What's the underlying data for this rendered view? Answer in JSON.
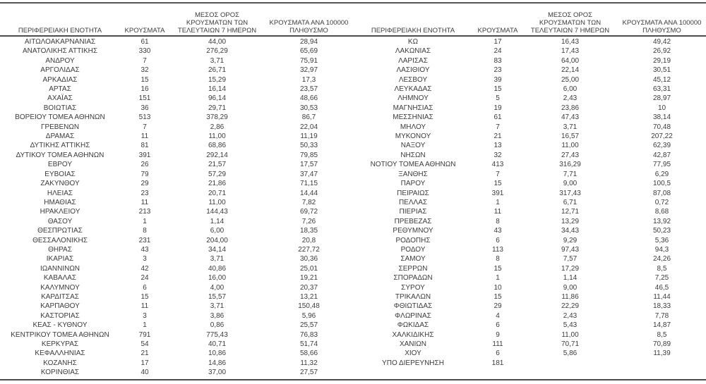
{
  "colors": {
    "text": "#3b3b3b",
    "rule": "#4d4d4d",
    "background": "#ffffff"
  },
  "header": {
    "region": "ΠΕΡΙΦΕΡΕΙΑΚΗ ΕΝΟΤΗΤΑ",
    "cases": "ΚΡΟΥΣΜΑΤΑ",
    "avg7": "ΜΕΣΟΣ ΟΡΟΣ\nΚΡΟΥΣΜΑΤΩΝ ΤΩΝ\nΤΕΛΕΥΤΑΙΩΝ 7 ΗΜΕΡΩΝ",
    "per100k": "ΚΡΟΥΣΜΑΤΑ ΑΝΑ 100000\nΠΛΗΘΥΣΜΟ"
  },
  "tables": [
    {
      "rows": [
        [
          "ΑΙΤΩΛΟΑΚΑΡΝΑΝΙΑΣ",
          "61",
          "44,00",
          "28,94"
        ],
        [
          "ΑΝΑΤΟΛΙΚΗΣ ΑΤΤΙΚΗΣ",
          "330",
          "276,29",
          "65,69"
        ],
        [
          "ΑΝΔΡΟΥ",
          "7",
          "3,71",
          "75,91"
        ],
        [
          "ΑΡΓΟΛΙΔΑΣ",
          "32",
          "26,71",
          "32,97"
        ],
        [
          "ΑΡΚΑΔΙΑΣ",
          "15",
          "15,29",
          "17,3"
        ],
        [
          "ΑΡΤΑΣ",
          "16",
          "16,14",
          "23,57"
        ],
        [
          "ΑΧΑΪΑΣ",
          "151",
          "96,14",
          "48,66"
        ],
        [
          "ΒΟΙΩΤΙΑΣ",
          "36",
          "29,71",
          "30,53"
        ],
        [
          "ΒΟΡΕΙΟΥ ΤΟΜΕΑ ΑΘΗΝΩΝ",
          "513",
          "378,29",
          "86,7"
        ],
        [
          "ΓΡΕΒΕΝΩΝ",
          "7",
          "2,86",
          "22,04"
        ],
        [
          "ΔΡΑΜΑΣ",
          "11",
          "11,00",
          "11,19"
        ],
        [
          "ΔΥΤΙΚΗΣ ΑΤΤΙΚΗΣ",
          "81",
          "68,86",
          "50,33"
        ],
        [
          "ΔΥΤΙΚΟΥ ΤΟΜΕΑ ΑΘΗΝΩΝ",
          "391",
          "292,14",
          "79,85"
        ],
        [
          "ΕΒΡΟΥ",
          "26",
          "21,57",
          "17,57"
        ],
        [
          "ΕΥΒΟΙΑΣ",
          "79",
          "57,29",
          "37,47"
        ],
        [
          "ΖΑΚΥΝΘΟΥ",
          "29",
          "21,86",
          "71,15"
        ],
        [
          "ΗΛΕΙΑΣ",
          "23",
          "20,71",
          "14,44"
        ],
        [
          "ΗΜΑΘΙΑΣ",
          "11",
          "11,00",
          "7,82"
        ],
        [
          "ΗΡΑΚΛΕΙΟΥ",
          "213",
          "144,43",
          "69,72"
        ],
        [
          "ΘΑΣΟΥ",
          "1",
          "1,14",
          "7,26"
        ],
        [
          "ΘΕΣΠΡΩΤΙΑΣ",
          "8",
          "6,00",
          "18,35"
        ],
        [
          "ΘΕΣΣΑΛΟΝΙΚΗΣ",
          "231",
          "204,00",
          "20,8"
        ],
        [
          "ΘΗΡΑΣ",
          "43",
          "34,14",
          "227,72"
        ],
        [
          "ΙΚΑΡΙΑΣ",
          "3",
          "3,71",
          "30,36"
        ],
        [
          "ΙΩΑΝΝΙΝΩΝ",
          "42",
          "40,86",
          "25,01"
        ],
        [
          "ΚΑΒΑΛΑΣ",
          "24",
          "16,00",
          "19,21"
        ],
        [
          "ΚΑΛΥΜΝΟΥ",
          "6",
          "4,00",
          "20,37"
        ],
        [
          "ΚΑΡΔΙΤΣΑΣ",
          "15",
          "15,57",
          "13,21"
        ],
        [
          "ΚΑΡΠΑΘΟΥ",
          "11",
          "3,71",
          "150,48"
        ],
        [
          "ΚΑΣΤΟΡΙΑΣ",
          "3",
          "3,86",
          "5,96"
        ],
        [
          "ΚΕΑΣ - ΚΥΘΝΟΥ",
          "1",
          "0,86",
          "25,57"
        ],
        [
          "ΚΕΝΤΡΙΚΟΥ ΤΟΜΕΑ ΑΘΗΝΩΝ",
          "791",
          "775,43",
          "76,83"
        ],
        [
          "ΚΕΡΚΥΡΑΣ",
          "54",
          "40,71",
          "51,74"
        ],
        [
          "ΚΕΦΑΛΛΗΝΙΑΣ",
          "21",
          "10,86",
          "58,66"
        ],
        [
          "ΚΟΖΑΝΗΣ",
          "17",
          "14,86",
          "11,32"
        ],
        [
          "ΚΟΡΙΝΘΙΑΣ",
          "40",
          "37,00",
          "27,57"
        ]
      ]
    },
    {
      "rows": [
        [
          "ΚΩ",
          "17",
          "16,43",
          "49,42"
        ],
        [
          "ΛΑΚΩΝΙΑΣ",
          "24",
          "17,43",
          "26,92"
        ],
        [
          "ΛΑΡΙΣΑΣ",
          "83",
          "64,00",
          "29,19"
        ],
        [
          "ΛΑΣΙΘΙΟΥ",
          "23",
          "22,14",
          "30,51"
        ],
        [
          "ΛΕΣΒΟΥ",
          "39",
          "25,00",
          "45,12"
        ],
        [
          "ΛΕΥΚΑΔΑΣ",
          "15",
          "6,00",
          "63,31"
        ],
        [
          "ΛΗΜΝΟΥ",
          "5",
          "2,43",
          "28,97"
        ],
        [
          "ΜΑΓΝΗΣΙΑΣ",
          "19",
          "23,86",
          "10"
        ],
        [
          "ΜΕΣΣΗΝΙΑΣ",
          "61",
          "47,43",
          "38,14"
        ],
        [
          "ΜΗΛΟΥ",
          "7",
          "3,71",
          "70,48"
        ],
        [
          "ΜΥΚΟΝΟΥ",
          "21",
          "16,57",
          "207,22"
        ],
        [
          "ΝΑΞΟΥ",
          "13",
          "11,00",
          "62,39"
        ],
        [
          "ΝΗΣΩΝ",
          "32",
          "27,43",
          "42,87"
        ],
        [
          "ΝΟΤΙΟΥ ΤΟΜΕΑ ΑΘΗΝΩΝ",
          "413",
          "316,29",
          "77,95"
        ],
        [
          "ΞΑΝΘΗΣ",
          "7",
          "7,71",
          "6,29"
        ],
        [
          "ΠΑΡΟΥ",
          "15",
          "9,00",
          "100,5"
        ],
        [
          "ΠΕΙΡΑΙΩΣ",
          "391",
          "317,43",
          "87,08"
        ],
        [
          "ΠΕΛΛΑΣ",
          "1",
          "6,71",
          "0,72"
        ],
        [
          "ΠΙΕΡΙΑΣ",
          "11",
          "12,71",
          "8,68"
        ],
        [
          "ΠΡΕΒΕΖΑΣ",
          "8",
          "13,29",
          "13,92"
        ],
        [
          "ΡΕΘΥΜΝΟΥ",
          "43",
          "34,43",
          "50,23"
        ],
        [
          "ΡΟΔΟΠΗΣ",
          "6",
          "9,29",
          "5,36"
        ],
        [
          "ΡΟΔΟΥ",
          "113",
          "97,43",
          "94,3"
        ],
        [
          "ΣΑΜΟΥ",
          "8",
          "7,57",
          "24,26"
        ],
        [
          "ΣΕΡΡΩΝ",
          "15",
          "17,29",
          "8,5"
        ],
        [
          "ΣΠΟΡΑΔΩΝ",
          "1",
          "1,14",
          "7,25"
        ],
        [
          "ΣΥΡΟΥ",
          "10",
          "9,00",
          "46,5"
        ],
        [
          "ΤΡΙΚΑΛΩΝ",
          "15",
          "11,86",
          "11,44"
        ],
        [
          "ΦΘΙΩΤΙΔΑΣ",
          "29",
          "22,29",
          "18,33"
        ],
        [
          "ΦΛΩΡΙΝΑΣ",
          "4",
          "2,43",
          "7,78"
        ],
        [
          "ΦΩΚΙΔΑΣ",
          "6",
          "5,43",
          "14,87"
        ],
        [
          "ΧΑΛΚΙΔΙΚΗΣ",
          "9",
          "11,00",
          "8,5"
        ],
        [
          "ΧΑΝΙΩΝ",
          "111",
          "70,71",
          "70,89"
        ],
        [
          "ΧΙΟΥ",
          "6",
          "5,86",
          "11,39"
        ],
        [
          "ΥΠΟ ΔΙΕΡΕΥΝΗΣΗ",
          "181",
          "",
          ""
        ]
      ]
    }
  ]
}
